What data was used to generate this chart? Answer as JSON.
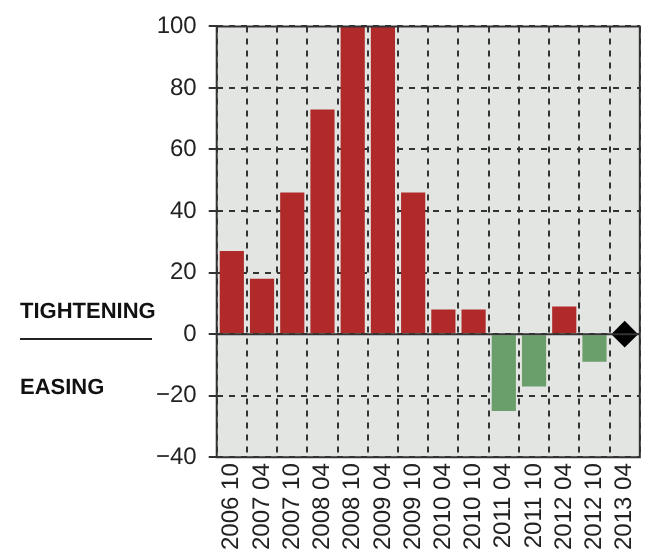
{
  "chart_data": {
    "type": "bar",
    "categories": [
      "2006 10",
      "2007 04",
      "2007 10",
      "2008 04",
      "2008 10",
      "2009 04",
      "2009 10",
      "2010 04",
      "2010 10",
      "2011 04",
      "2011 10",
      "2012 04",
      "2012 10",
      "2013 04"
    ],
    "series": [
      {
        "values": [
          27,
          18,
          46,
          73,
          100,
          100,
          46,
          8,
          8,
          -25,
          -17,
          9,
          -9,
          null
        ],
        "colors": [
          "#b02a2a",
          "#b02a2a",
          "#b02a2a",
          "#b02a2a",
          "#b02a2a",
          "#b02a2a",
          "#b02a2a",
          "#b02a2a",
          "#b02a2a",
          "#6a9e6a",
          "#6a9e6a",
          "#b02a2a",
          "#6a9e6a",
          "#b02a2a"
        ]
      },
      {
        "type": "scatter",
        "x": [
          "2013 04"
        ],
        "values": [
          0
        ],
        "color": "#000000",
        "marker": "diamond"
      }
    ],
    "ylim": [
      -40,
      100
    ],
    "yticks": [
      -40,
      -20,
      0,
      20,
      40,
      60,
      80,
      100
    ],
    "grid": true,
    "annotations": [
      "TIGHTENING",
      "EASING"
    ]
  }
}
